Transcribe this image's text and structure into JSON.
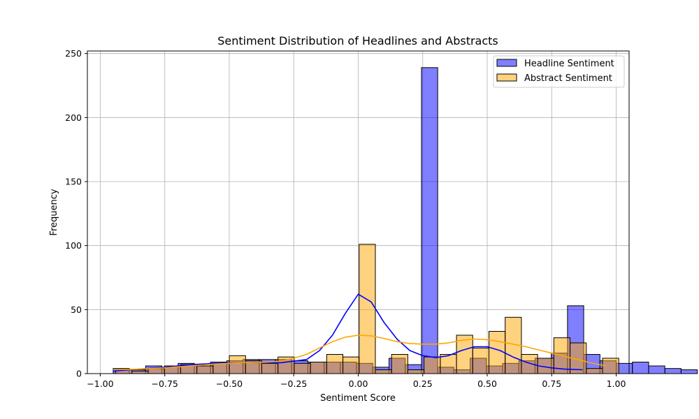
{
  "chart_data": {
    "type": "histogram",
    "title": "Sentiment Distribution of Headlines and Abstracts",
    "xlabel": "Sentiment Score",
    "ylabel": "Frequency",
    "xlim": [
      -1.05,
      1.05
    ],
    "ylim": [
      0,
      252
    ],
    "xticks": [
      -1.0,
      -0.75,
      -0.5,
      -0.25,
      0.0,
      0.25,
      0.5,
      0.75,
      1.0
    ],
    "xtick_labels": [
      "−1.00",
      "−0.75",
      "−0.50",
      "−0.25",
      "0.00",
      "0.25",
      "0.50",
      "0.75",
      "1.00"
    ],
    "yticks": [
      0,
      50,
      100,
      150,
      200,
      250
    ],
    "ytick_labels": [
      "0",
      "50",
      "100",
      "150",
      "200",
      "250"
    ],
    "grid": true,
    "legend_position": "top-right",
    "series": [
      {
        "name": "Headline Sentiment",
        "color": "#0000ff",
        "fill_alpha": 0.5,
        "bin_start": -0.95,
        "bin_width": 0.0629,
        "counts": [
          4,
          3,
          6,
          5,
          8,
          6,
          9,
          10,
          11,
          11,
          11,
          10,
          9,
          9,
          9,
          8,
          5,
          12,
          7,
          239,
          5,
          3,
          12,
          6,
          8,
          10,
          12,
          16,
          53,
          15,
          10,
          8,
          9,
          6,
          4,
          3
        ],
        "kde": [
          [
            -0.95,
            2
          ],
          [
            -0.85,
            3.5
          ],
          [
            -0.75,
            5
          ],
          [
            -0.65,
            7
          ],
          [
            -0.55,
            8
          ],
          [
            -0.45,
            8.5
          ],
          [
            -0.4,
            8.8
          ],
          [
            -0.3,
            8.5
          ],
          [
            -0.2,
            11
          ],
          [
            -0.15,
            18
          ],
          [
            -0.1,
            30
          ],
          [
            -0.05,
            47
          ],
          [
            0.0,
            62
          ],
          [
            0.05,
            56
          ],
          [
            0.1,
            40
          ],
          [
            0.15,
            27
          ],
          [
            0.2,
            18
          ],
          [
            0.25,
            14
          ],
          [
            0.3,
            12.5
          ],
          [
            0.35,
            14
          ],
          [
            0.4,
            18
          ],
          [
            0.45,
            21
          ],
          [
            0.5,
            21
          ],
          [
            0.55,
            18
          ],
          [
            0.6,
            13
          ],
          [
            0.65,
            9
          ],
          [
            0.7,
            6
          ],
          [
            0.75,
            4.5
          ],
          [
            0.8,
            3.5
          ],
          [
            0.87,
            3
          ]
        ]
      },
      {
        "name": "Abstract Sentiment",
        "color": "#ffa500",
        "fill_alpha": 0.5,
        "bin_start": -0.94,
        "bin_width": 0.0629,
        "counts": [
          3,
          2,
          4,
          6,
          7,
          6,
          8,
          14,
          10,
          8,
          13,
          8,
          9,
          15,
          13,
          101,
          3,
          15,
          3,
          13,
          15,
          30,
          20,
          33,
          44,
          15,
          12,
          28,
          24,
          4,
          12
        ],
        "kde": [
          [
            -0.95,
            3
          ],
          [
            -0.85,
            3.5
          ],
          [
            -0.75,
            4.5
          ],
          [
            -0.65,
            6
          ],
          [
            -0.55,
            7.5
          ],
          [
            -0.45,
            8.5
          ],
          [
            -0.35,
            9
          ],
          [
            -0.3,
            9.5
          ],
          [
            -0.25,
            12
          ],
          [
            -0.2,
            15
          ],
          [
            -0.15,
            20
          ],
          [
            -0.1,
            25
          ],
          [
            -0.05,
            28.5
          ],
          [
            0.0,
            30
          ],
          [
            0.05,
            29.5
          ],
          [
            0.1,
            27.5
          ],
          [
            0.15,
            25
          ],
          [
            0.2,
            23.5
          ],
          [
            0.25,
            23
          ],
          [
            0.3,
            23
          ],
          [
            0.35,
            24
          ],
          [
            0.4,
            26
          ],
          [
            0.45,
            27
          ],
          [
            0.5,
            26.5
          ],
          [
            0.55,
            25
          ],
          [
            0.6,
            23
          ],
          [
            0.65,
            21
          ],
          [
            0.7,
            18.5
          ],
          [
            0.75,
            16
          ],
          [
            0.8,
            13.5
          ],
          [
            0.85,
            11
          ],
          [
            0.9,
            8.5
          ],
          [
            0.96,
            6
          ]
        ]
      }
    ]
  }
}
